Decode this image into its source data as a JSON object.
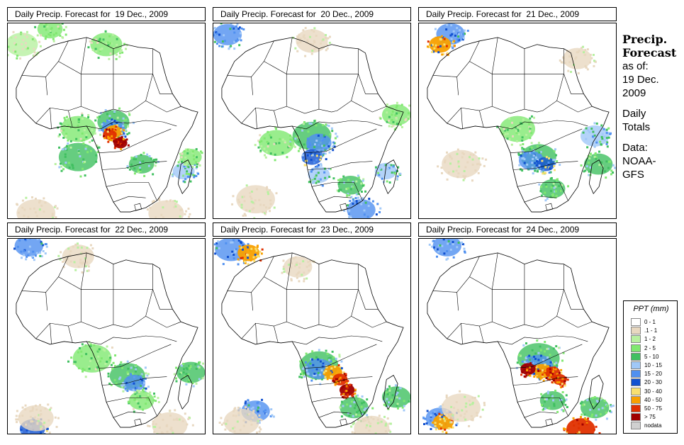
{
  "panels": [
    {
      "title": "Daily Precip. Forecast for  19 Dec., 2009",
      "level": 1
    },
    {
      "title": "Daily Precip. Forecast for  20 Dec., 2009",
      "level": 0
    },
    {
      "title": "Daily Precip. Forecast for  21 Dec., 2009",
      "level": 2
    },
    {
      "title": "Daily Precip. Forecast for  22 Dec., 2009",
      "level": 0
    },
    {
      "title": "Daily Precip. Forecast for  23 Dec., 2009",
      "level": 2
    },
    {
      "title": "Daily Precip. Forecast for  24 Dec., 2009",
      "level": 3
    }
  ],
  "sidebar": {
    "title_line1": "Precip.",
    "title_line2": "Forecast",
    "asof": "as of:",
    "date1": "19 Dec.",
    "date2": "2009",
    "daily": "Daily",
    "totals": "Totals",
    "data_label": "Data:",
    "source1": "NOAA-",
    "source2": "GFS"
  },
  "legend": {
    "title": "PPT (mm)",
    "items": [
      {
        "label": "0 - 1",
        "color": "#ffffff"
      },
      {
        "label": ".1 - 1",
        "color": "#e8d8c0"
      },
      {
        "label": "1 - 2",
        "color": "#b8f0a0"
      },
      {
        "label": "2 - 5",
        "color": "#80e870"
      },
      {
        "label": "5 - 10",
        "color": "#40c060"
      },
      {
        "label": "10 - 15",
        "color": "#a0c8f8"
      },
      {
        "label": "15 - 20",
        "color": "#5090f0"
      },
      {
        "label": "20 - 30",
        "color": "#1050d0"
      },
      {
        "label": "30 - 40",
        "color": "#f8e070"
      },
      {
        "label": "40 - 50",
        "color": "#f8a000"
      },
      {
        "label": "50 - 75",
        "color": "#e03000"
      },
      {
        "label": "> 75",
        "color": "#a00000"
      },
      {
        "label": "nodata",
        "color": "#d0d0d0"
      }
    ]
  }
}
